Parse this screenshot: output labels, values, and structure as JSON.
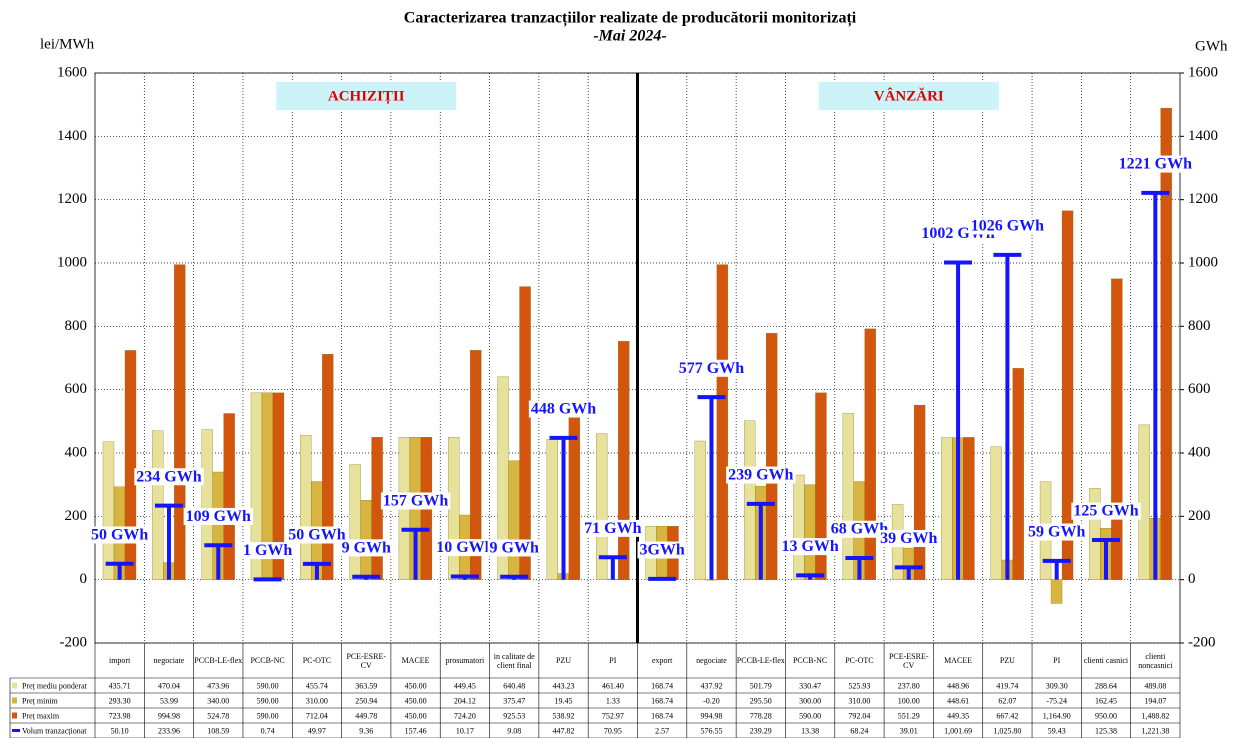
{
  "chart_data": {
    "type": "bar",
    "title": "Caracterizarea tranzacțiilor realizate de producătorii monitorizați",
    "subtitle": "-Mai 2024-",
    "y_label": "lei/MWh",
    "y2_label": "GWh",
    "section_labels": [
      "ACHIZIȚII",
      "VÂNZĂRI"
    ],
    "categories": [
      "import",
      "negociate",
      "PCCB-LE-flex",
      "PCCB-NC",
      "PC-OTC",
      "PCE-ESRE-CV",
      "MACEE",
      "prosumatori",
      "in calitate de client final",
      "PZU",
      "PI",
      "export",
      "negociate",
      "PCCB-LE-flex",
      "PCCB-NC",
      "PC-OTC",
      "PCE-ESRE-CV",
      "MACEE",
      "PZU",
      "PI",
      "clienti casnici",
      "clienti noncasnici"
    ],
    "ylim": [
      -200,
      1600
    ],
    "yticks": [
      -200,
      0,
      200,
      400,
      600,
      800,
      1000,
      1200,
      1400,
      1600
    ],
    "y2lim": [
      -200,
      1600
    ],
    "y2ticks": [
      -200,
      0,
      200,
      400,
      600,
      800,
      1000,
      1200,
      1400,
      1600
    ],
    "grid": true,
    "series": [
      {
        "name": "Preț mediu ponderat",
        "color": "#e6e29c",
        "values": [
          435.71,
          470.04,
          473.96,
          590.0,
          455.74,
          363.59,
          450.0,
          449.45,
          640.48,
          443.23,
          461.4,
          168.74,
          437.92,
          501.79,
          330.47,
          525.93,
          237.8,
          448.96,
          419.74,
          309.3,
          288.64,
          489.08
        ],
        "value_labels": [
          "435.71",
          "470.04",
          "473.96",
          "590.00",
          "455.74",
          "363.59",
          "450.00",
          "449.45",
          "640.48",
          "443.23",
          "461.40",
          "168.74",
          "437.92",
          "501.79",
          "330.47",
          "525.93",
          "237.80",
          "448.96",
          "419.74",
          "309.30",
          "288.64",
          "489.08"
        ]
      },
      {
        "name": "Preț minim",
        "color": "#d8b440",
        "values": [
          293.3,
          53.99,
          340.0,
          590.0,
          310.0,
          250.94,
          450.0,
          204.12,
          375.47,
          19.45,
          1.33,
          168.74,
          -0.2,
          295.5,
          300.0,
          310.0,
          100.0,
          448.61,
          62.07,
          -75.24,
          162.45,
          194.07
        ],
        "value_labels": [
          "293.30",
          "53.99",
          "340.00",
          "590.00",
          "310.00",
          "250.94",
          "450.00",
          "204.12",
          "375.47",
          "19.45",
          "1.33",
          "168.74",
          "-0.20",
          "295.50",
          "300.00",
          "310.00",
          "100.00",
          "448.61",
          "62.07",
          "-75.24",
          "162.45",
          "194.07"
        ]
      },
      {
        "name": "Preț maxim",
        "color": "#d2560e",
        "values": [
          723.98,
          994.98,
          524.78,
          590.0,
          712.04,
          449.78,
          450.0,
          724.2,
          925.53,
          538.92,
          752.97,
          168.74,
          994.98,
          778.28,
          590.0,
          792.04,
          551.29,
          449.35,
          667.42,
          1164.9,
          950.0,
          1488.82
        ],
        "value_labels": [
          "723.98",
          "994.98",
          "524.78",
          "590.00",
          "712.04",
          "449.78",
          "450.00",
          "724.20",
          "925.53",
          "538.92",
          "752.97",
          "168.74",
          "994.98",
          "778.28",
          "590.00",
          "792.04",
          "551.29",
          "449.35",
          "667.42",
          "1,164.90",
          "950.00",
          "1,488.82"
        ]
      },
      {
        "name": "Volum tranzacționat",
        "color": "#1414ff",
        "axis": "y2",
        "values": [
          50.1,
          233.96,
          108.59,
          0.74,
          49.97,
          9.36,
          157.46,
          10.17,
          9.08,
          447.82,
          70.95,
          2.57,
          576.55,
          239.29,
          13.38,
          68.24,
          39.01,
          1001.69,
          1025.8,
          59.43,
          125.38,
          1221.38
        ],
        "value_labels": [
          "50.10",
          "233.96",
          "108.59",
          "0.74",
          "49.97",
          "9.36",
          "157.46",
          "10.17",
          "9.08",
          "447.82",
          "70.95",
          "2.57",
          "576.55",
          "239.29",
          "13.38",
          "68.24",
          "39.01",
          "1,001.69",
          "1,025.80",
          "59.43",
          "125.38",
          "1,221.38"
        ],
        "annotations": [
          "50 GWh",
          "234 GWh",
          "109 GWh",
          "1 GWh",
          "50 GWh",
          "9 GWh",
          "157 GWh",
          "10 GWh",
          "9 GWh",
          "448 GWh",
          "71 GWh",
          "3GWh",
          "577 GWh",
          "239 GWh",
          "13 GWh",
          "68 GWh",
          "39 GWh",
          "1002 GWh",
          "1026 GWh",
          "59 GWh",
          "125 GWh",
          "1221 GWh"
        ]
      }
    ]
  }
}
